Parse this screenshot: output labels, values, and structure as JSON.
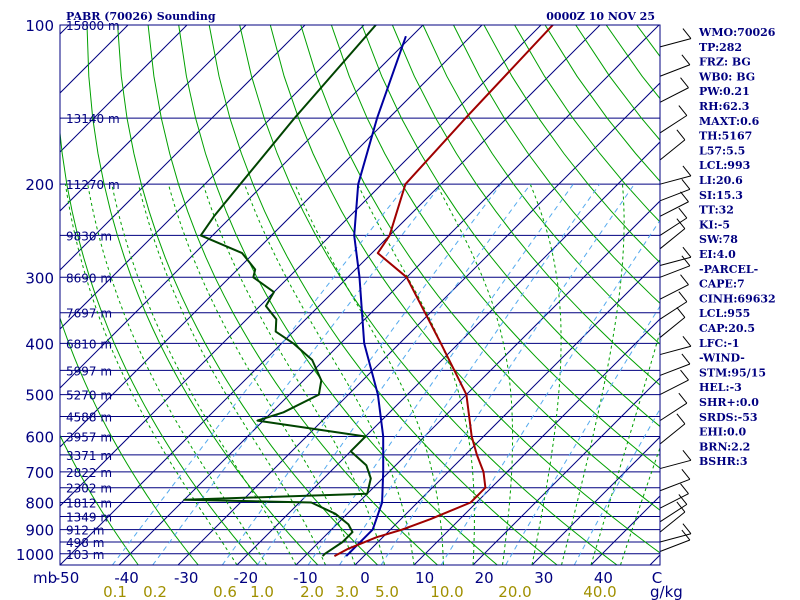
{
  "header": {
    "title": "PABR (70026) Sounding",
    "time": "0000Z 10 NOV 25"
  },
  "units": {
    "pressure": "mb",
    "mixing_ratio": "g/kg"
  },
  "colors": {
    "frame": "#000080",
    "isotherm": "#000080",
    "dry_adiabat": "#00a000",
    "moist_adiabat": "#00a000",
    "mixing_ratio": "#55aaee",
    "temperature": "#a00000",
    "dewpoint": "#004400",
    "parcel": "#0000a0",
    "wind": "#000000",
    "text": "#000080",
    "mixing_label": "#a09000"
  },
  "indices": [
    "WMO:70026",
    "TP:282",
    "FRZ: BG",
    "WB0: BG",
    "PW:0.21",
    "RH:62.3",
    "MAXT:0.6",
    "TH:5167",
    "L57:5.5",
    "LCL:993",
    "LI:20.6",
    "SI:15.3",
    "TT:32",
    "KI:-5",
    "SW:78",
    "EI:4.0",
    "-PARCEL-",
    "CAPE:7",
    "CINH:69632",
    "LCL:955",
    "CAP:20.5",
    "LFC:-1",
    "-WIND-",
    "STM:95/15",
    "HEL:-3",
    "SHR+:0.0",
    "SRDS:-53",
    "EHI:0.0",
    "BRN:2.2",
    "BSHR:3"
  ],
  "chart_data": {
    "type": "skew-t",
    "title": "PABR (70026) Sounding",
    "ylabel": "mb",
    "xlabel": "g/kg",
    "pressure_ticks": [
      100,
      200,
      300,
      400,
      500,
      600,
      700,
      800,
      900,
      1000
    ],
    "temperature_ticks": [
      "-50",
      "-40",
      "-30",
      "-20",
      "-10",
      "0",
      "10",
      "20",
      "30",
      "40"
    ],
    "mixing_ratio_ticks": [
      "0.1",
      "0.2",
      "0.6",
      "1.0",
      "2.0",
      "3.0",
      "5.0",
      "10.0",
      "20.0",
      "40.0"
    ],
    "height_levels": [
      {
        "pressure": 100,
        "height": "15800 m"
      },
      {
        "pressure": 150,
        "height": "13140 m"
      },
      {
        "pressure": 200,
        "height": "11270 m"
      },
      {
        "pressure": 250,
        "height": "9830 m"
      },
      {
        "pressure": 300,
        "height": "8690 m"
      },
      {
        "pressure": 350,
        "height": "7697 m"
      },
      {
        "pressure": 400,
        "height": "6810 m"
      },
      {
        "pressure": 450,
        "height": "5997 m"
      },
      {
        "pressure": 500,
        "height": "5270 m"
      },
      {
        "pressure": 550,
        "height": "4588 m"
      },
      {
        "pressure": 600,
        "height": "3957 m"
      },
      {
        "pressure": 650,
        "height": "3371 m"
      },
      {
        "pressure": 700,
        "height": "2822 m"
      },
      {
        "pressure": 750,
        "height": "2302 m"
      },
      {
        "pressure": 800,
        "height": "1812 m"
      },
      {
        "pressure": 850,
        "height": "1349 m"
      },
      {
        "pressure": 900,
        "height": "912 m"
      },
      {
        "pressure": 950,
        "height": "498 m"
      },
      {
        "pressure": 1000,
        "height": "103 m"
      }
    ],
    "temperature_profile": [
      {
        "p": 100,
        "t": -58
      },
      {
        "p": 150,
        "t": -57
      },
      {
        "p": 200,
        "t": -56
      },
      {
        "p": 250,
        "t": -50
      },
      {
        "p": 270,
        "t": -49
      },
      {
        "p": 300,
        "t": -40
      },
      {
        "p": 400,
        "t": -23
      },
      {
        "p": 500,
        "t": -10
      },
      {
        "p": 600,
        "t": -2
      },
      {
        "p": 650,
        "t": 2
      },
      {
        "p": 700,
        "t": 6
      },
      {
        "p": 750,
        "t": 9
      },
      {
        "p": 800,
        "t": 9
      },
      {
        "p": 860,
        "t": 5
      },
      {
        "p": 900,
        "t": 2
      },
      {
        "p": 930,
        "t": -1
      },
      {
        "p": 980,
        "t": -4
      },
      {
        "p": 1010,
        "t": -5
      }
    ],
    "dewpoint_profile": [
      {
        "p": 100,
        "t": -88
      },
      {
        "p": 150,
        "t": -86
      },
      {
        "p": 200,
        "t": -84
      },
      {
        "p": 230,
        "t": -83
      },
      {
        "p": 250,
        "t": -82
      },
      {
        "p": 270,
        "t": -72
      },
      {
        "p": 290,
        "t": -67
      },
      {
        "p": 300,
        "t": -66
      },
      {
        "p": 320,
        "t": -60
      },
      {
        "p": 340,
        "t": -59
      },
      {
        "p": 360,
        "t": -55
      },
      {
        "p": 380,
        "t": -53
      },
      {
        "p": 400,
        "t": -48
      },
      {
        "p": 430,
        "t": -42
      },
      {
        "p": 470,
        "t": -37
      },
      {
        "p": 500,
        "t": -35
      },
      {
        "p": 540,
        "t": -38
      },
      {
        "p": 560,
        "t": -41
      },
      {
        "p": 600,
        "t": -20
      },
      {
        "p": 640,
        "t": -20
      },
      {
        "p": 680,
        "t": -15
      },
      {
        "p": 720,
        "t": -12
      },
      {
        "p": 770,
        "t": -10
      },
      {
        "p": 790,
        "t": -40
      },
      {
        "p": 800,
        "t": -18
      },
      {
        "p": 840,
        "t": -12
      },
      {
        "p": 880,
        "t": -8
      },
      {
        "p": 910,
        "t": -6
      },
      {
        "p": 950,
        "t": -6
      },
      {
        "p": 1000,
        "t": -7
      },
      {
        "p": 1010,
        "t": -7
      }
    ],
    "parcel_profile": [
      {
        "p": 105,
        "t": -81
      },
      {
        "p": 150,
        "t": -72
      },
      {
        "p": 200,
        "t": -64
      },
      {
        "p": 250,
        "t": -56
      },
      {
        "p": 300,
        "t": -48
      },
      {
        "p": 400,
        "t": -36
      },
      {
        "p": 500,
        "t": -25
      },
      {
        "p": 600,
        "t": -17
      },
      {
        "p": 700,
        "t": -11
      },
      {
        "p": 800,
        "t": -6
      },
      {
        "p": 900,
        "t": -3
      },
      {
        "p": 1000,
        "t": -3
      },
      {
        "p": 1010,
        "t": -3
      }
    ],
    "grid": true,
    "legend": "right-side indices panel"
  }
}
